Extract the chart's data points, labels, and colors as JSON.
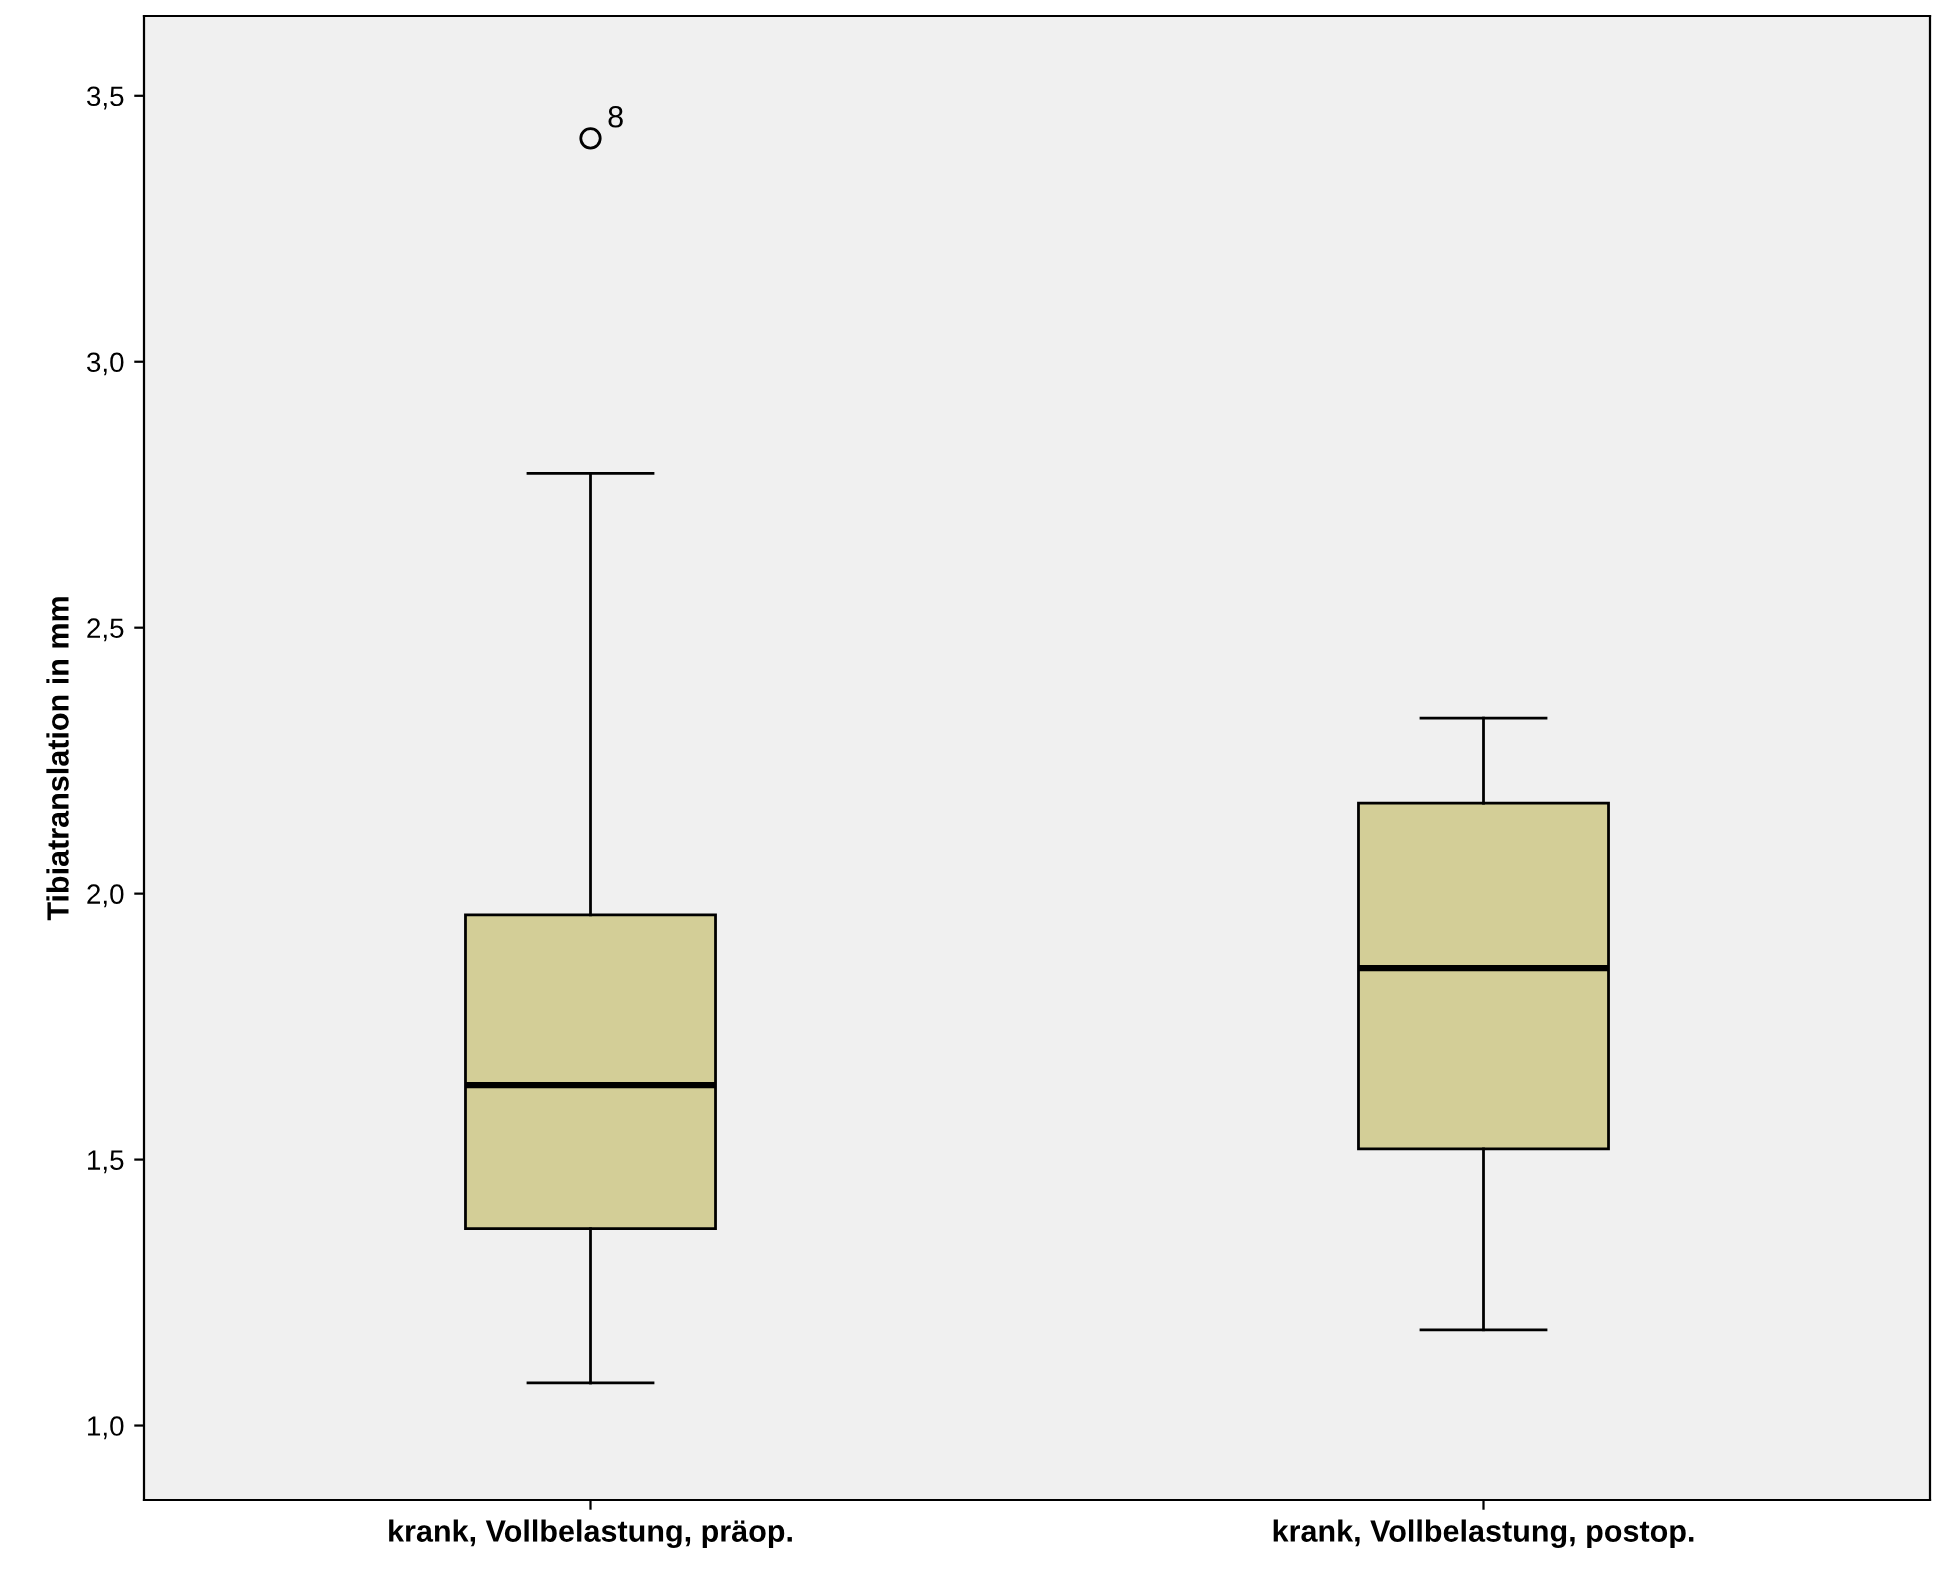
{
  "chart_data": {
    "type": "box",
    "ylabel": "Tibiatranslation in mm",
    "categories": [
      "krank, Vollbelastung, präop.",
      "krank, Vollbelastung, postop."
    ],
    "boxes": [
      {
        "low": 1.08,
        "q1": 1.37,
        "median": 1.64,
        "q3": 1.96,
        "high": 2.79,
        "outliers": [
          3.42
        ]
      },
      {
        "low": 1.18,
        "q1": 1.52,
        "median": 1.86,
        "q3": 2.17,
        "high": 2.33
      }
    ],
    "color": "#d3ce97",
    "ylim": [
      0.86,
      3.65
    ],
    "yticks": [
      {
        "value": 1.0,
        "label": "1,0"
      },
      {
        "value": 1.5,
        "label": "1,5"
      },
      {
        "value": 2.0,
        "label": "2,0"
      },
      {
        "value": 2.5,
        "label": "2,5"
      },
      {
        "value": 3.0,
        "label": "3,0"
      },
      {
        "value": 3.5,
        "label": "3,5"
      }
    ],
    "annotations": [
      "8"
    ],
    "grid": false
  }
}
